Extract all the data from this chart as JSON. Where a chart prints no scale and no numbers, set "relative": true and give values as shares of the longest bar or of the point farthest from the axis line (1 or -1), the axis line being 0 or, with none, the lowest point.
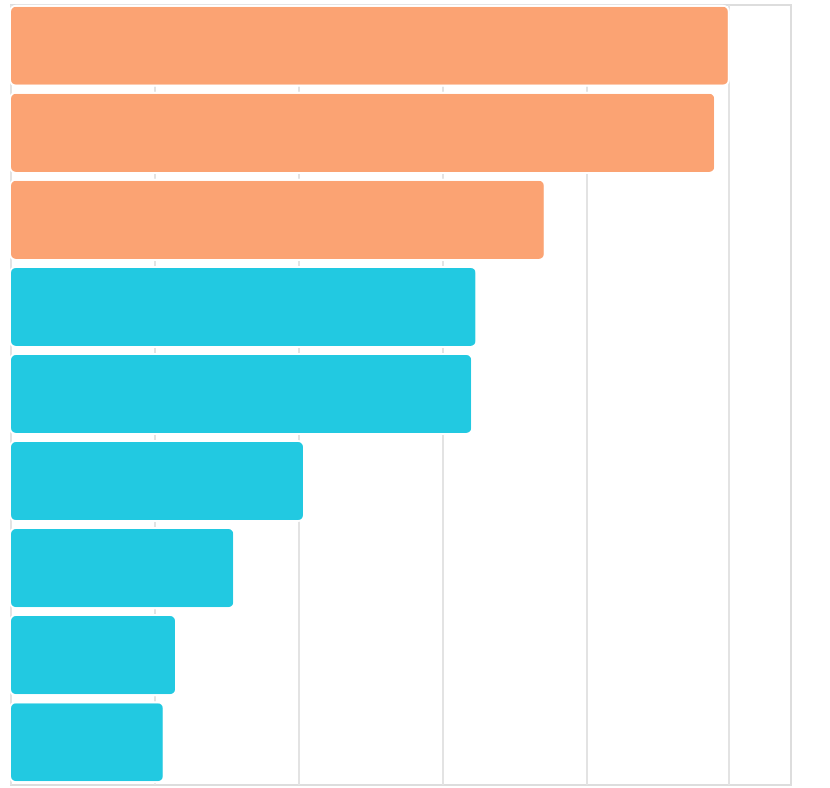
{
  "chart_data": {
    "type": "bar",
    "orientation": "horizontal",
    "relative": true,
    "grid": "x",
    "categories": [
      null,
      null,
      null,
      null,
      null,
      null,
      null,
      null,
      null
    ],
    "values": [
      1,
      0.981,
      0.744,
      0.649,
      0.643,
      0.409,
      0.312,
      0.231,
      0.214
    ],
    "colors": [
      "#fba373",
      "#fba373",
      "#fba373",
      "#22c9e1",
      "#22c9e1",
      "#22c9e1",
      "#22c9e1",
      "#22c9e1",
      "#22c9e1"
    ]
  }
}
